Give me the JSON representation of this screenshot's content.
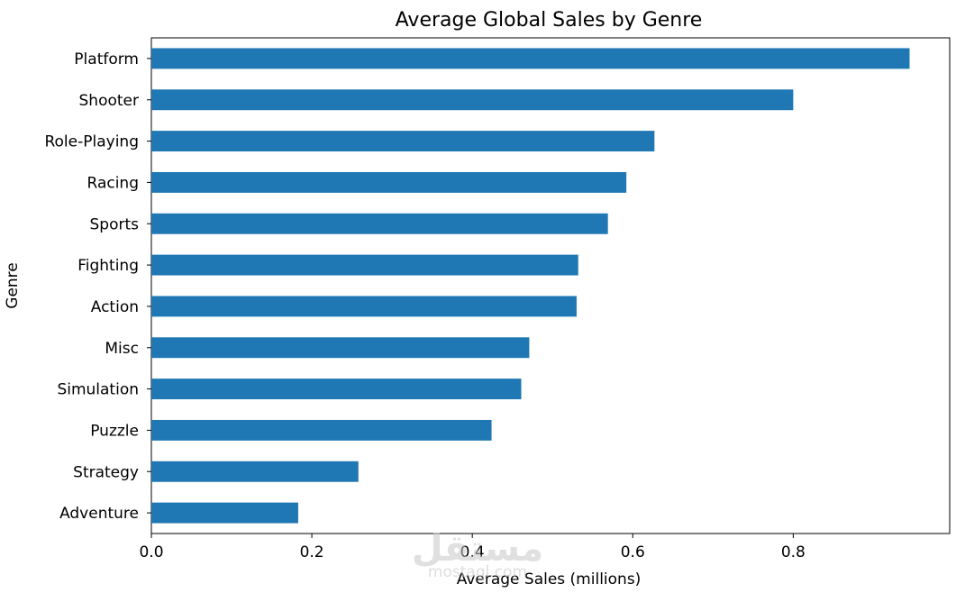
{
  "chart_data": {
    "type": "bar",
    "orientation": "horizontal",
    "title": "Average Global Sales by Genre",
    "xlabel": "Average Sales (millions)",
    "ylabel": "Genre",
    "categories": [
      "Platform",
      "Shooter",
      "Role-Playing",
      "Racing",
      "Sports",
      "Fighting",
      "Action",
      "Misc",
      "Simulation",
      "Puzzle",
      "Strategy",
      "Adventure"
    ],
    "values": [
      0.945,
      0.8,
      0.627,
      0.592,
      0.569,
      0.532,
      0.53,
      0.471,
      0.461,
      0.424,
      0.258,
      0.183
    ],
    "xlim": [
      0,
      0.995
    ],
    "xticks": [
      "0.0",
      "0.2",
      "0.4",
      "0.6",
      "0.8"
    ],
    "xtick_values": [
      0.0,
      0.2,
      0.4,
      0.6,
      0.8
    ],
    "grid": false,
    "bar_color": "#1f77b4"
  },
  "watermark": {
    "text": "مستقل",
    "subtext": "mostaql.com"
  }
}
